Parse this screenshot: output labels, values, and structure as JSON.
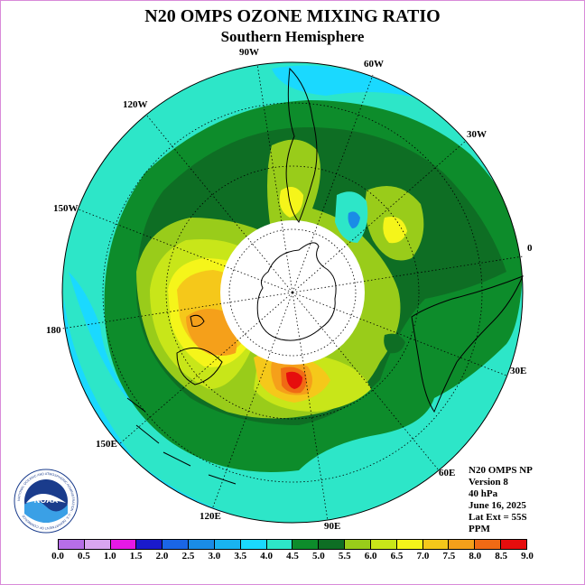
{
  "title": "N20 OMPS OZONE MIXING RATIO",
  "subtitle": "Southern Hemisphere",
  "longitude_labels": [
    {
      "text": "90W",
      "id": "lon-90w"
    },
    {
      "text": "60W",
      "id": "lon-60w"
    },
    {
      "text": "30W",
      "id": "lon-30w"
    },
    {
      "text": "0",
      "id": "lon-0"
    },
    {
      "text": "30E",
      "id": "lon-30e"
    },
    {
      "text": "60E",
      "id": "lon-60e"
    },
    {
      "text": "90E",
      "id": "lon-90e"
    },
    {
      "text": "120E",
      "id": "lon-120e"
    },
    {
      "text": "150E",
      "id": "lon-150e"
    },
    {
      "text": "180",
      "id": "lon-180"
    },
    {
      "text": "150W",
      "id": "lon-150w"
    },
    {
      "text": "120W",
      "id": "lon-120w"
    }
  ],
  "info": {
    "line1": "N20 OMPS NP",
    "line2": "Version 8",
    "line3": "40 hPa",
    "line4": "June 16, 2025",
    "line5": "Lat Ext = 55S",
    "line6": "PPM"
  },
  "colorbar": {
    "ticks": [
      "0.0",
      "0.5",
      "1.0",
      "1.5",
      "2.0",
      "2.5",
      "3.0",
      "3.5",
      "4.0",
      "4.5",
      "5.0",
      "5.5",
      "6.0",
      "6.5",
      "7.0",
      "7.5",
      "8.0",
      "8.5",
      "9.0"
    ],
    "colors": [
      "#b66ee8",
      "#d9a6f0",
      "#e619e6",
      "#1a1acc",
      "#1a66e6",
      "#1a8ce6",
      "#19b3f0",
      "#1ad9ff",
      "#2de6c8",
      "#0d8c2b",
      "#0e6e24",
      "#99cc1a",
      "#c8e619",
      "#f5f51a",
      "#f5c81a",
      "#f5a01a",
      "#f06a14",
      "#e60d0d",
      "#8c5a3c"
    ]
  },
  "logo": {
    "text": "NOAA",
    "ring_text": "NATIONAL OCEANIC AND ATMOSPHERIC ADMINISTRATION · U.S. DEPARTMENT OF COMMERCE"
  },
  "colors": {
    "ocean_ring": "#2de6c8",
    "light_blue": "#1ad9ff",
    "dark_green": "#0e6e24",
    "mid_green": "#0d8c2b",
    "lime": "#99cc1a",
    "yellow": "#f5f51a",
    "orange": "#f5a01a",
    "red": "#e60d0d"
  }
}
